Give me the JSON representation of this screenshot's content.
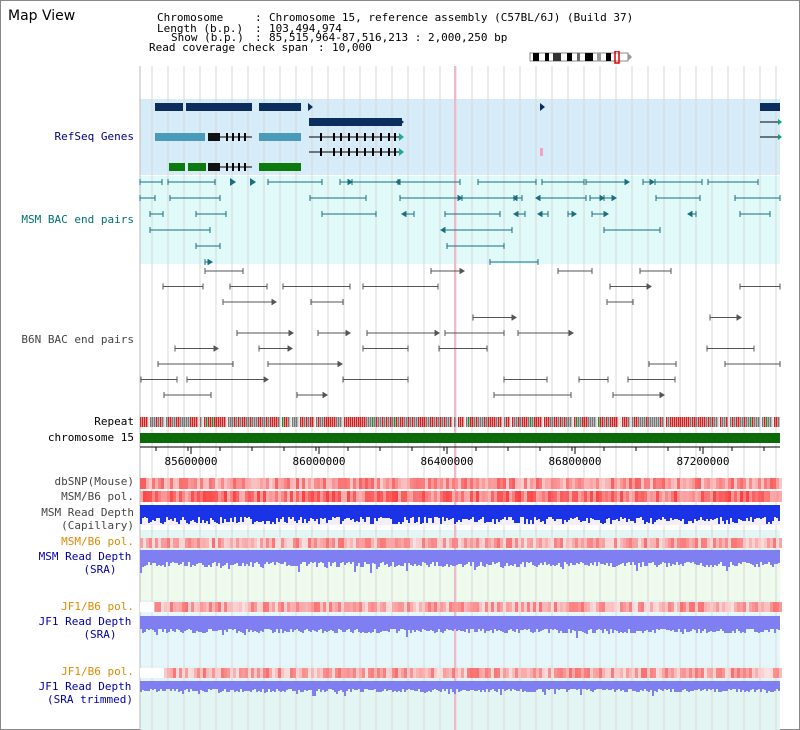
{
  "title": "Map View",
  "info": {
    "chromosome_label": "Chromosome",
    "chromosome_value": "Chromosome 15, reference assembly (C57BL/6J) (Build 37)",
    "length_label": "Length (b.p.)",
    "length_value": "103,494,974",
    "show_label": "Show (b.p.)",
    "show_value": "85,515,964-87,516,213 : 2,000,250 bp",
    "span_label": "Read coverage check span",
    "span_value": "10,000"
  },
  "tracks": {
    "refseq": "RefSeq Genes",
    "msm_bac": "MSM BAC end pairs",
    "b6n_bac": "B6N BAC end pairs",
    "repeat": "Repeat",
    "chromosome": "chromosome 15",
    "dbsnp": "dbSNP(Mouse)",
    "msm_b6_pol_1": "MSM/B6 pol.",
    "msm_depth_cap_1": "MSM Read Depth",
    "msm_depth_cap_2": "(Capillary)",
    "msm_b6_pol_2": "MSM/B6 pol.",
    "msm_depth_sra_1": "MSM Read Depth",
    "msm_depth_sra_2": "(SRA)",
    "jf1_b6_pol_1": "JF1/B6 pol.",
    "jf1_depth_sra_1": "JF1 Read Depth",
    "jf1_depth_sra_2": "(SRA)",
    "jf1_b6_pol_2": "JF1/B6 pol.",
    "jf1_depth_trim_1": "JF1 Read Depth",
    "jf1_depth_trim_2": "(SRA trimmed)"
  },
  "axis_ticks": [
    "85600000",
    "86000000",
    "86400000",
    "86800000",
    "87200000"
  ],
  "colors": {
    "navy": "#0b2e5e",
    "refseq_label": "#000080",
    "msm_label": "#007070",
    "gray_label": "#444444",
    "orange_label": "#e08a00",
    "blue_label": "#0000aa",
    "chromosome": "#0b6b0b",
    "gene_teal": "#4a9ab8",
    "gene_green": "#0d7a0d",
    "msm_line": "#1a6f7f",
    "read_depth": "#1a33e6",
    "read_depth_light": "#7f7ff2"
  },
  "icons": [
    "chromosome-ideogram-icon",
    "strand-arrow-icon"
  ]
}
